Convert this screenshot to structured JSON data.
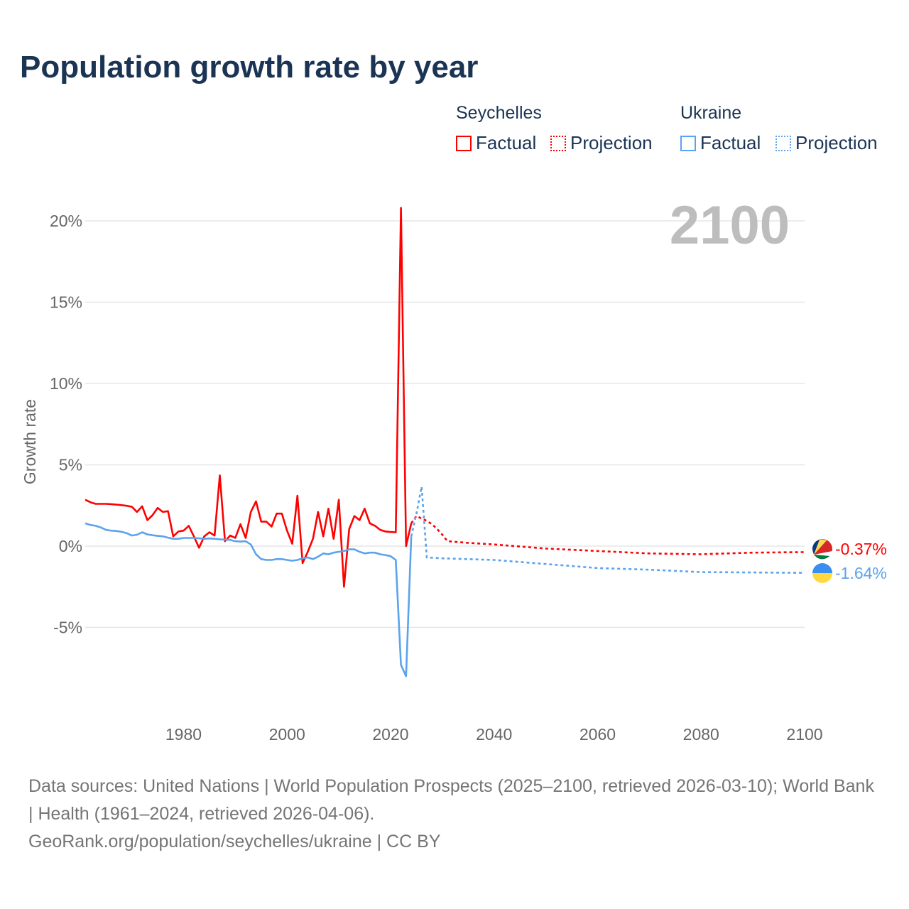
{
  "title": "Population growth rate by year",
  "legend": {
    "groups": [
      {
        "name": "Seychelles",
        "factual": "Factual",
        "projection": "Projection",
        "color": "#ff0000"
      },
      {
        "name": "Ukraine",
        "factual": "Factual",
        "projection": "Projection",
        "color": "#5ba3ec"
      }
    ]
  },
  "footer": {
    "sources": "Data sources: United Nations | World Population Prospects (2025–2100, retrieved 2026-03-10); World Bank | Health (1961–2024, retrieved 2026-04-06).",
    "credit": "GeoRank.org/population/seychelles/ukraine | CC BY"
  },
  "chart_data": {
    "type": "line",
    "title": "Population growth rate by year",
    "ylabel": "Growth rate",
    "xlabel": "",
    "year_label": "2100",
    "xlim": [
      1961,
      2100
    ],
    "ylim": [
      -10,
      21
    ],
    "xticks": [
      1980,
      2000,
      2020,
      2040,
      2060,
      2080,
      2100
    ],
    "yticks": [
      -5,
      0,
      5,
      10,
      15,
      20
    ],
    "ytick_labels": [
      "-5%",
      "0%",
      "5%",
      "10%",
      "15%",
      "20%"
    ],
    "grid": true,
    "series": [
      {
        "name": "Seychelles",
        "color": "#ff0000",
        "end_label": "-0.37%",
        "factual": {
          "x": [
            1961,
            1962,
            1963,
            1964,
            1965,
            1966,
            1967,
            1968,
            1969,
            1970,
            1971,
            1972,
            1973,
            1974,
            1975,
            1976,
            1977,
            1978,
            1979,
            1980,
            1981,
            1982,
            1983,
            1984,
            1985,
            1986,
            1987,
            1988,
            1989,
            1990,
            1991,
            1992,
            1993,
            1994,
            1995,
            1996,
            1997,
            1998,
            1999,
            2000,
            2001,
            2002,
            2003,
            2004,
            2005,
            2006,
            2007,
            2008,
            2009,
            2010,
            2011,
            2012,
            2013,
            2014,
            2015,
            2016,
            2017,
            2018,
            2019,
            2020,
            2021,
            2022,
            2023,
            2024
          ],
          "y": [
            2.85,
            2.7,
            2.6,
            2.6,
            2.6,
            2.58,
            2.55,
            2.52,
            2.48,
            2.42,
            2.1,
            2.45,
            1.6,
            1.9,
            2.35,
            2.1,
            2.15,
            0.6,
            0.9,
            0.95,
            1.25,
            0.6,
            -0.1,
            0.6,
            0.85,
            0.65,
            4.35,
            0.3,
            0.65,
            0.5,
            1.35,
            0.5,
            2.1,
            2.75,
            1.5,
            1.5,
            1.2,
            2.0,
            2.0,
            0.95,
            0.15,
            3.1,
            -1.05,
            -0.35,
            0.45,
            2.1,
            0.6,
            2.3,
            0.45,
            2.85,
            -2.5,
            1.05,
            1.85,
            1.6,
            2.3,
            1.4,
            1.25,
            1.0,
            0.9,
            0.87,
            0.85,
            20.8,
            0.0,
            1.4
          ]
        },
        "projection": {
          "x": [
            2024,
            2025,
            2026,
            2027,
            2028,
            2029,
            2030,
            2031,
            2035,
            2040,
            2050,
            2060,
            2070,
            2080,
            2090,
            2099,
            2100
          ],
          "y": [
            1.4,
            1.85,
            1.7,
            1.55,
            1.35,
            1.05,
            0.7,
            0.3,
            0.2,
            0.1,
            -0.15,
            -0.3,
            -0.45,
            -0.5,
            -0.4,
            -0.37,
            -0.37
          ]
        }
      },
      {
        "name": "Ukraine",
        "color": "#5ba3ec",
        "end_label": "-1.64%",
        "factual": {
          "x": [
            1961,
            1962,
            1963,
            1964,
            1965,
            1966,
            1967,
            1968,
            1969,
            1970,
            1971,
            1972,
            1973,
            1974,
            1975,
            1976,
            1977,
            1978,
            1979,
            1980,
            1981,
            1982,
            1983,
            1984,
            1985,
            1986,
            1987,
            1988,
            1989,
            1990,
            1991,
            1992,
            1993,
            1994,
            1995,
            1996,
            1997,
            1998,
            1999,
            2000,
            2001,
            2002,
            2003,
            2004,
            2005,
            2006,
            2007,
            2008,
            2009,
            2010,
            2011,
            2012,
            2013,
            2014,
            2015,
            2016,
            2017,
            2018,
            2019,
            2020,
            2021,
            2022,
            2023,
            2024
          ],
          "y": [
            1.4,
            1.3,
            1.25,
            1.15,
            1.0,
            0.95,
            0.93,
            0.88,
            0.8,
            0.65,
            0.7,
            0.85,
            0.72,
            0.67,
            0.63,
            0.6,
            0.52,
            0.45,
            0.45,
            0.5,
            0.5,
            0.5,
            0.48,
            0.45,
            0.47,
            0.45,
            0.42,
            0.4,
            0.38,
            0.3,
            0.28,
            0.3,
            0.1,
            -0.5,
            -0.8,
            -0.85,
            -0.85,
            -0.8,
            -0.8,
            -0.85,
            -0.9,
            -0.85,
            -0.75,
            -0.7,
            -0.8,
            -0.65,
            -0.45,
            -0.5,
            -0.4,
            -0.35,
            -0.3,
            -0.2,
            -0.2,
            -0.35,
            -0.45,
            -0.4,
            -0.4,
            -0.5,
            -0.55,
            -0.62,
            -0.85,
            -7.3,
            -8.0,
            0.6
          ]
        },
        "projection": {
          "x": [
            2024,
            2025,
            2026,
            2027,
            2030,
            2040,
            2050,
            2060,
            2070,
            2080,
            2090,
            2099,
            2100
          ],
          "y": [
            0.6,
            2.0,
            3.65,
            -0.7,
            -0.75,
            -0.85,
            -1.1,
            -1.35,
            -1.45,
            -1.6,
            -1.62,
            -1.64,
            -1.64
          ]
        }
      }
    ]
  }
}
